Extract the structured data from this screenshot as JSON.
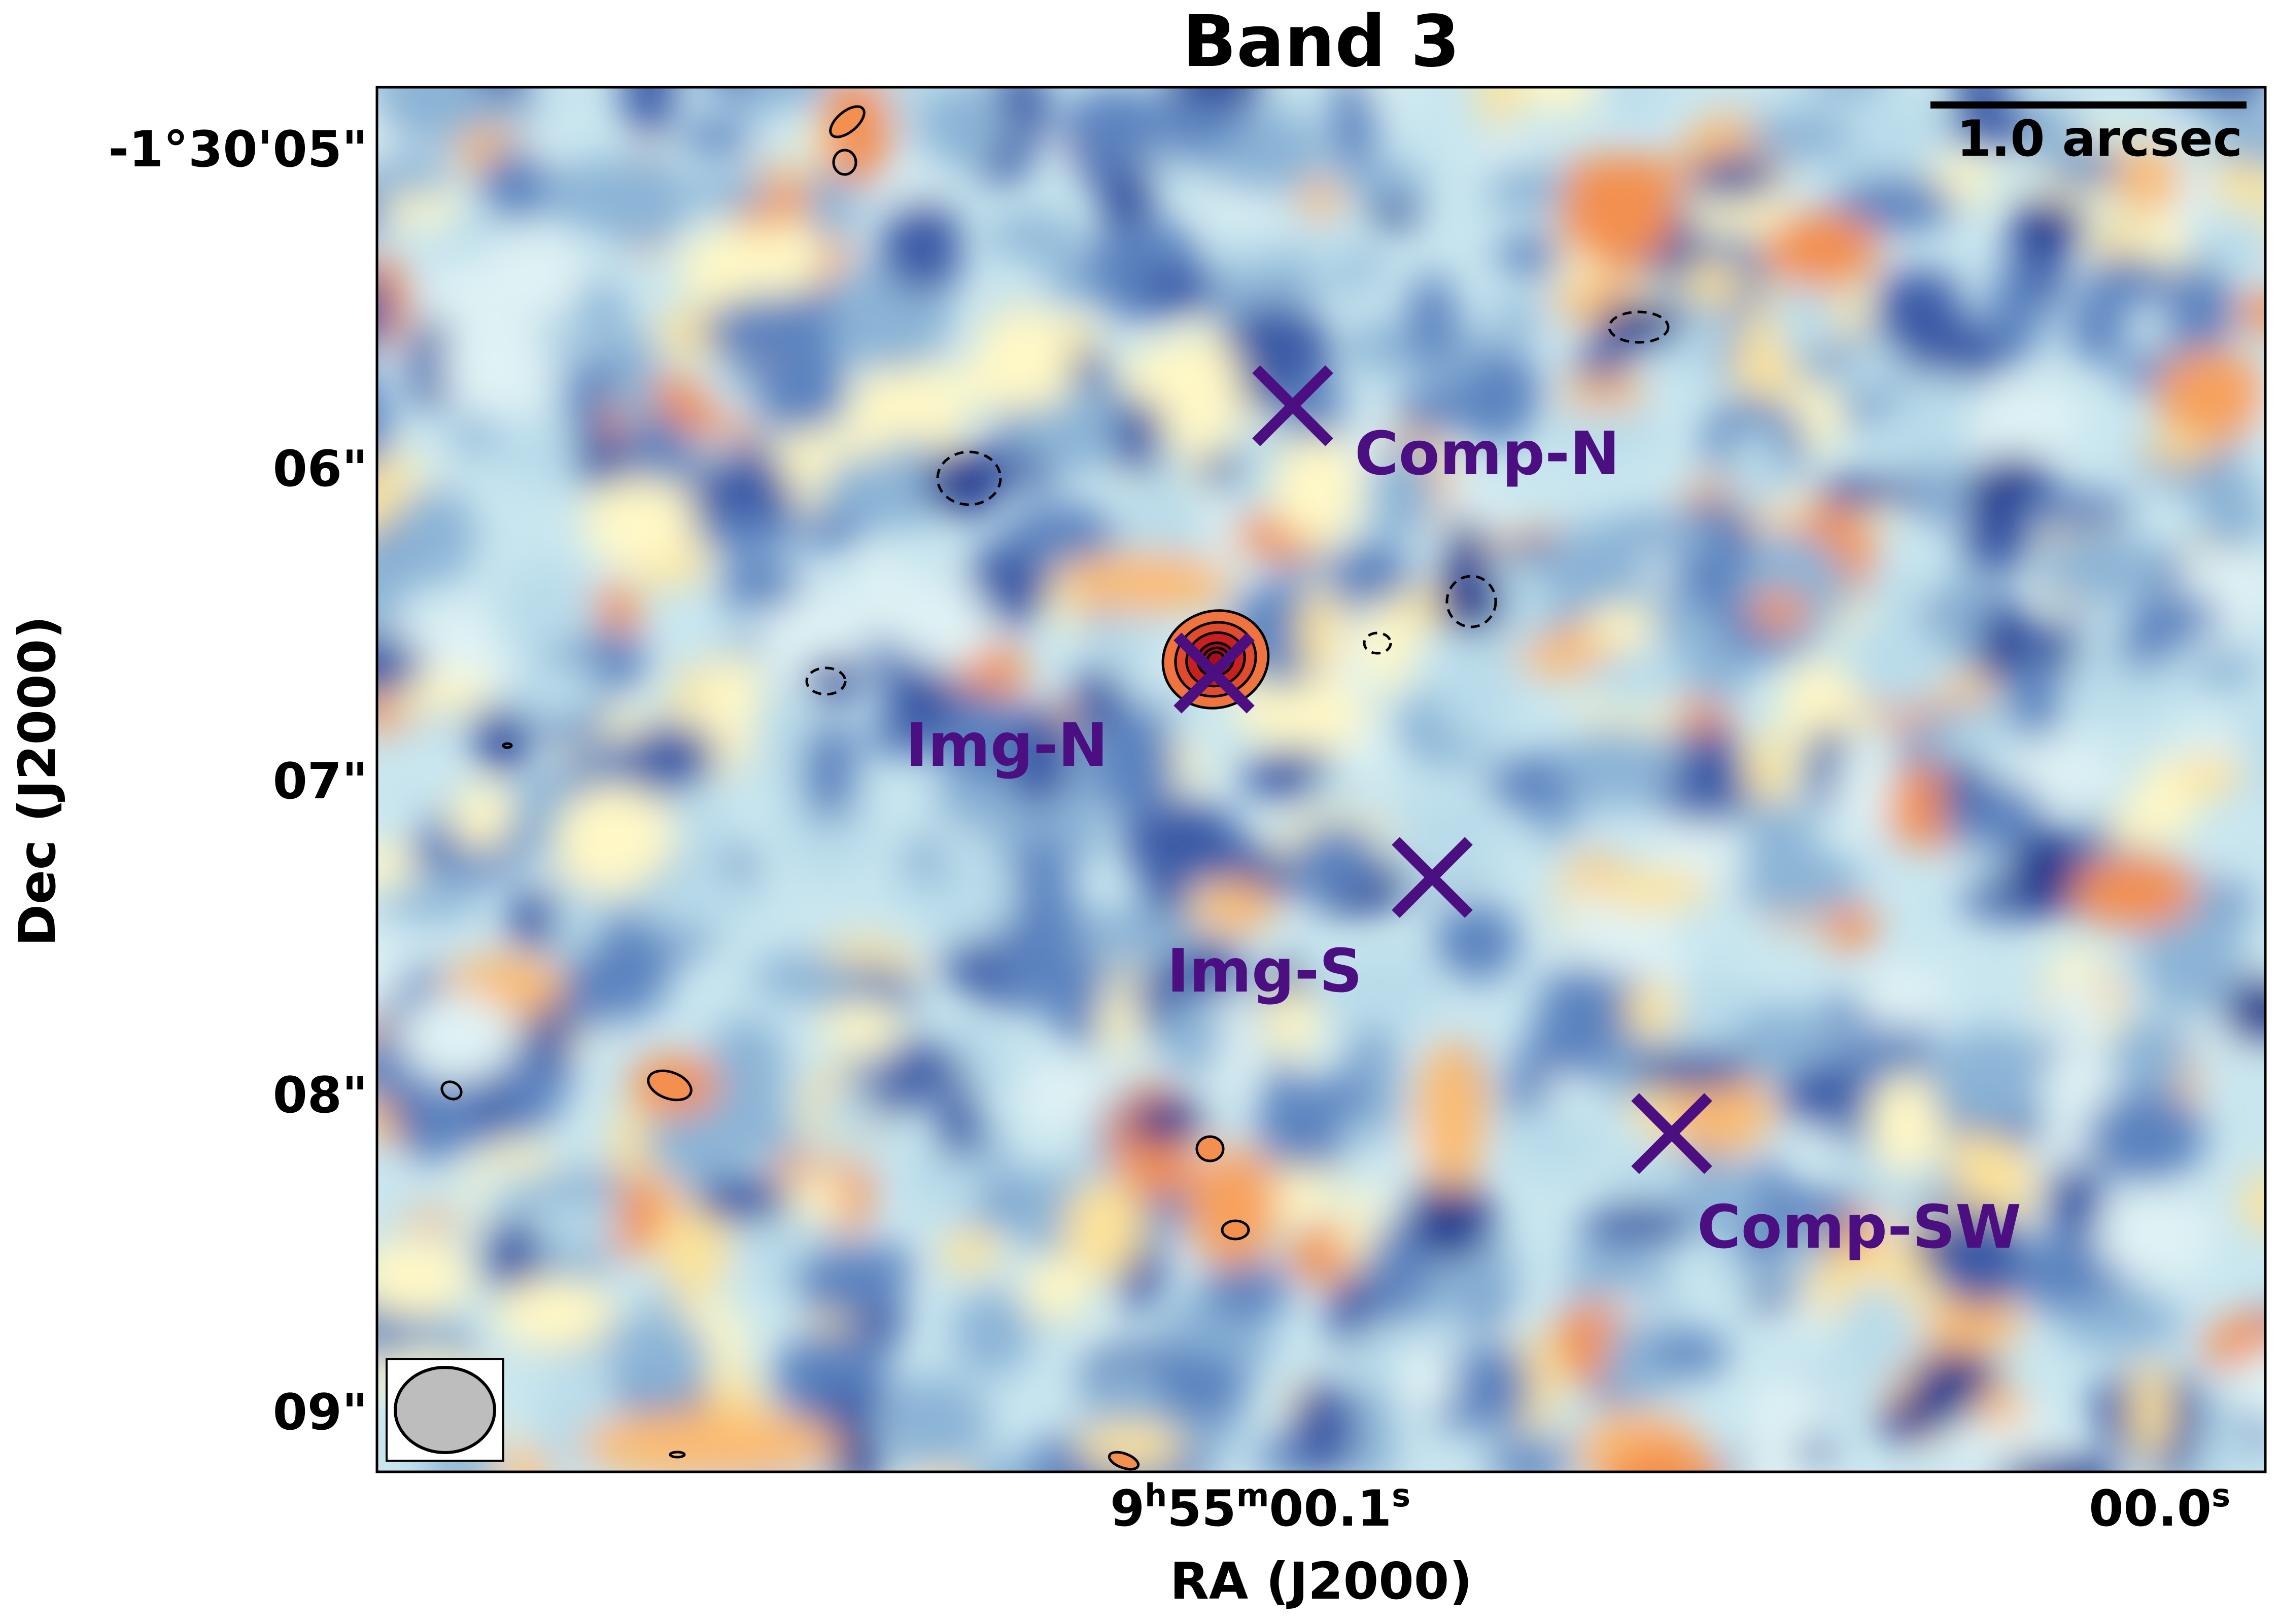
{
  "title": "Band 3",
  "x_axis": {
    "label": "RA (J2000)",
    "ticks": [
      {
        "value": "9h55m00.1s",
        "parts": [
          "9",
          "h",
          "55",
          "m",
          "00.1",
          "s"
        ]
      },
      {
        "value": "00.0s",
        "parts": [
          "00.0",
          "s"
        ]
      }
    ]
  },
  "y_axis": {
    "label": "Dec (J2000)",
    "ticks": [
      "-1°30'05\"",
      "06\"",
      "07\"",
      "08\"",
      "09\""
    ]
  },
  "scale_bar": {
    "label": "1.0 arcsec"
  },
  "colormap": {
    "name": "RdYlBu_r",
    "low": "#2c3f94",
    "mid": "#fbf6c2",
    "high": "#c8201f"
  },
  "contour_color": "#000000",
  "markers": [
    {
      "name": "comp-n",
      "label": "Comp-N",
      "color": "#4b0f82"
    },
    {
      "name": "img-n",
      "label": "Img-N",
      "color": "#4b0f82"
    },
    {
      "name": "img-s",
      "label": "Img-S",
      "color": "#4b0f82"
    },
    {
      "name": "comp-sw",
      "label": "Comp-SW",
      "color": "#4b0f82"
    }
  ],
  "beam": {
    "fill": "#bdbdbd",
    "edge": "#000000"
  }
}
